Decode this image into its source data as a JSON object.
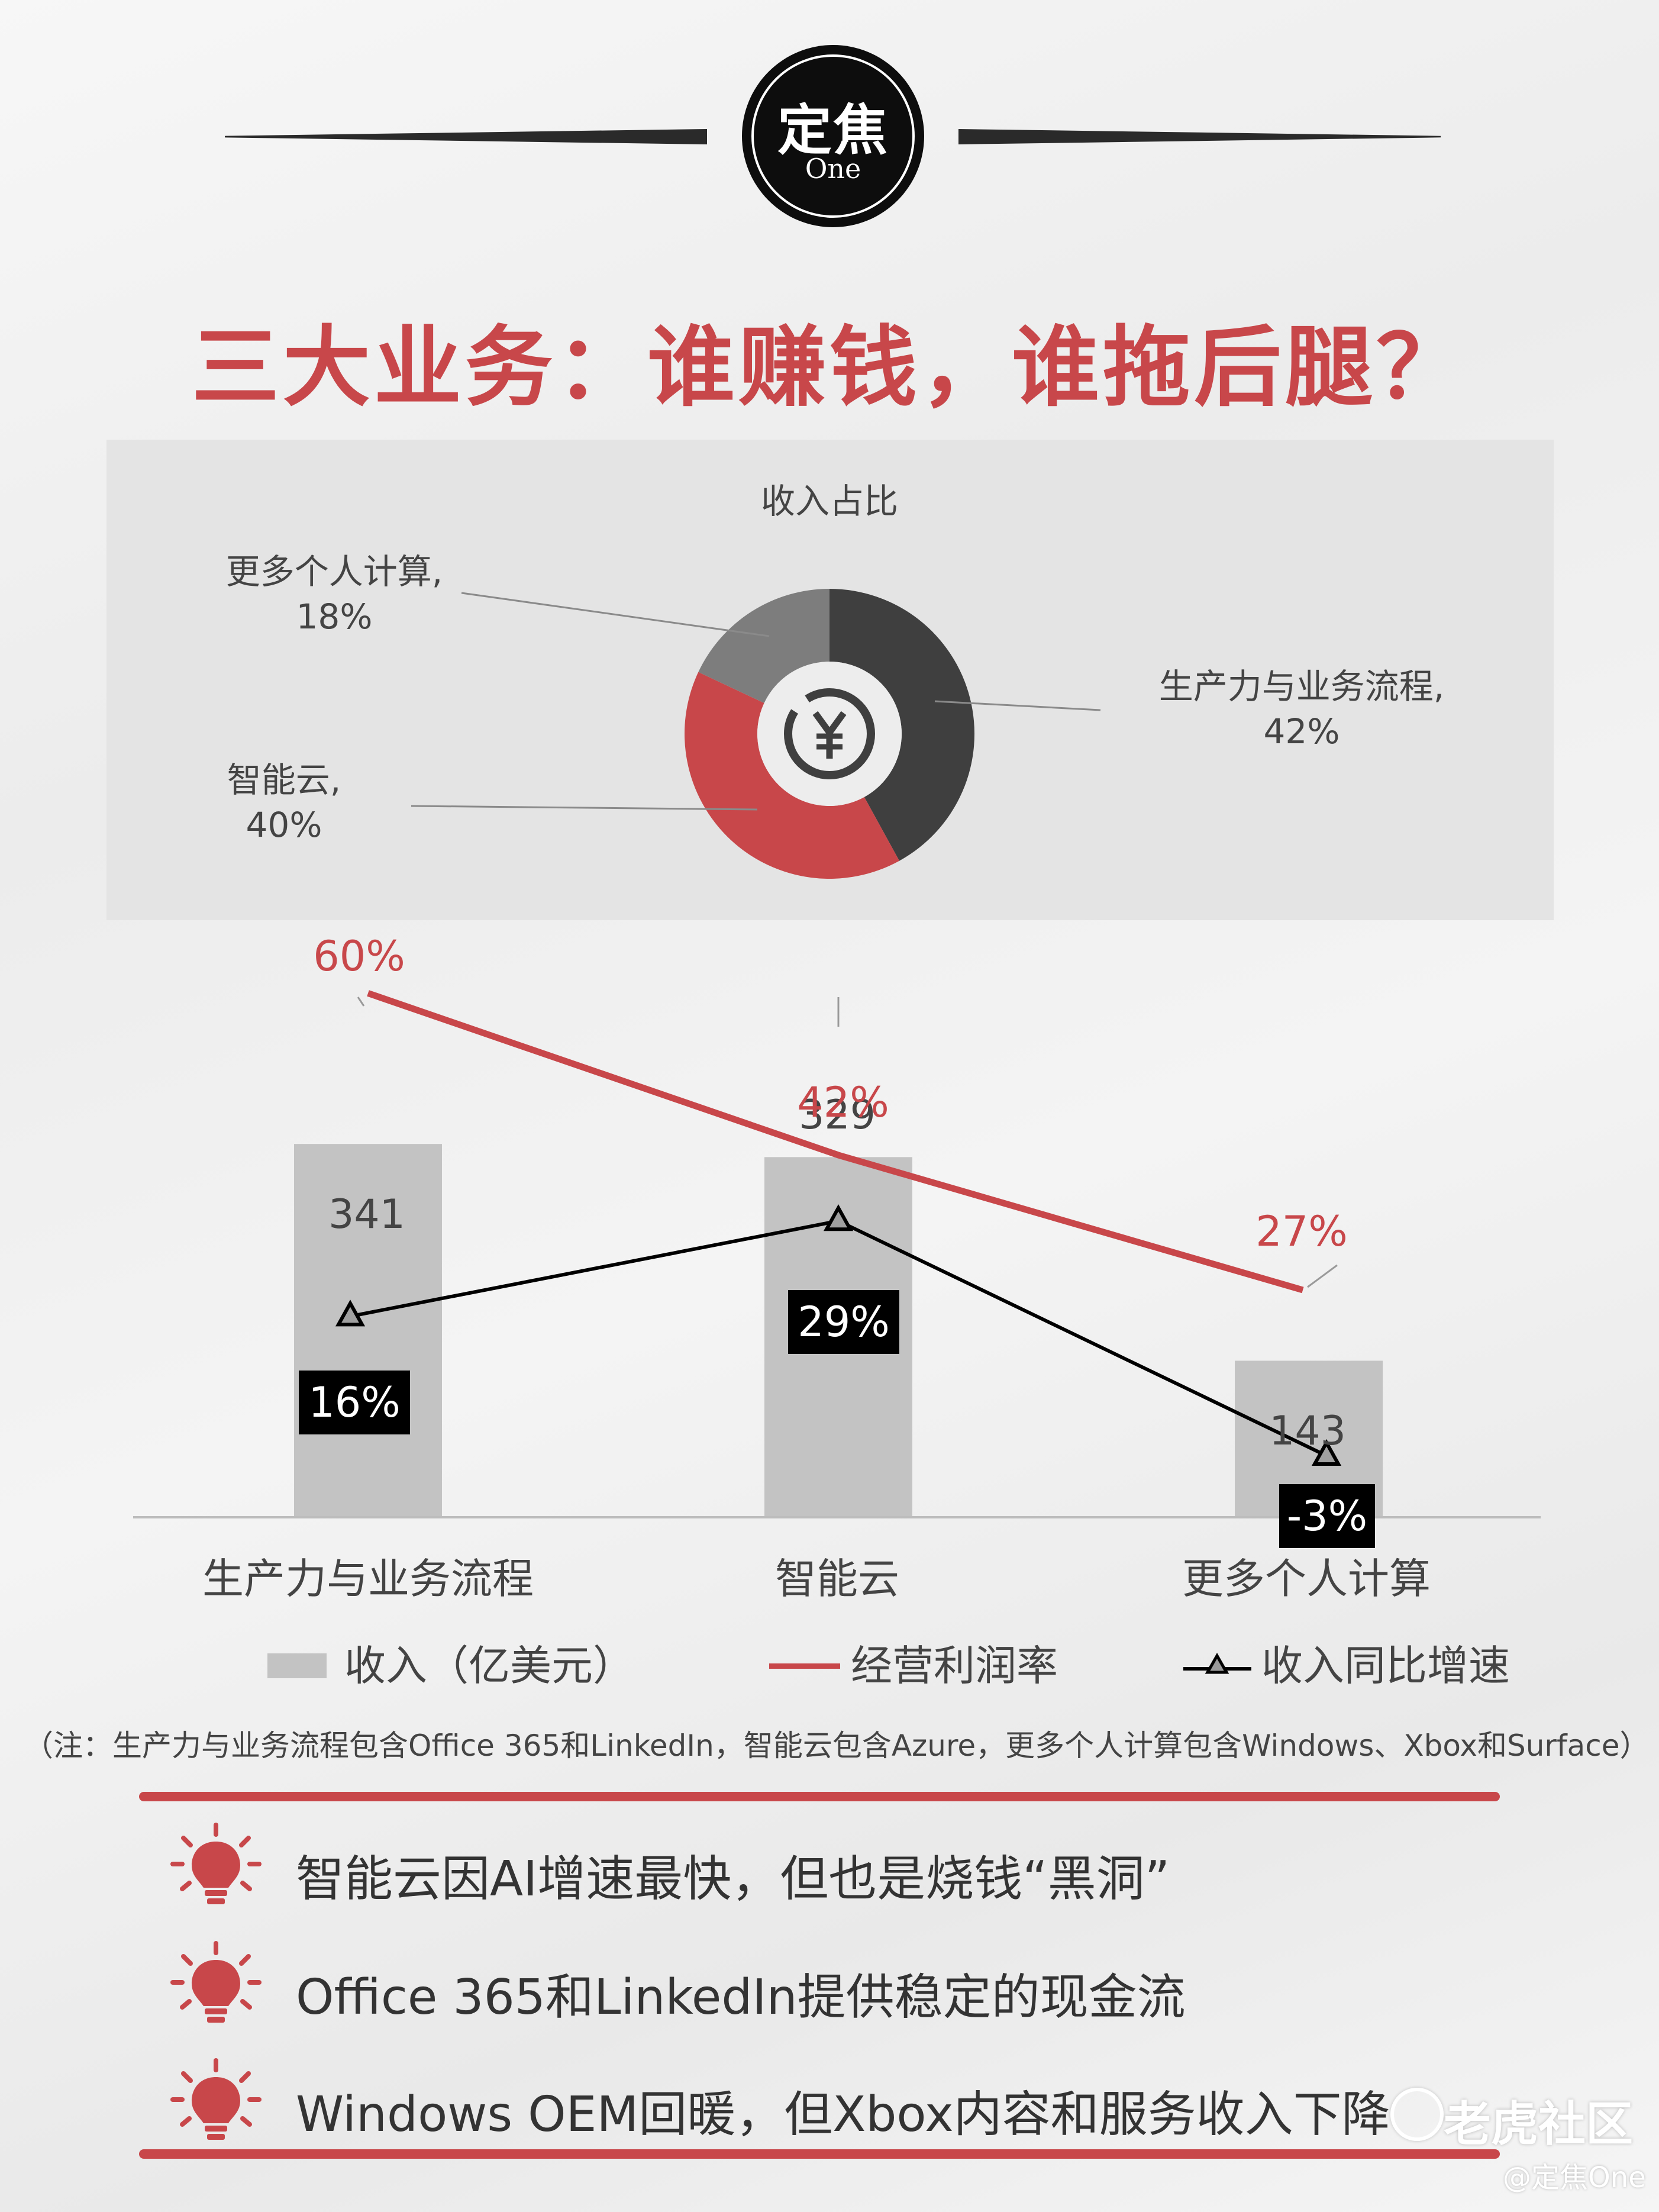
{
  "header": {
    "logo_main": "定焦",
    "logo_sub": "One",
    "headline": "三大业务：谁赚钱，谁拖后腿？"
  },
  "colors": {
    "accent_red": "#c8474a",
    "dark_gray": "#3f3f3f",
    "mid_gray": "#7d7d7d",
    "bar_gray": "#c3c3c3"
  },
  "chart_data": [
    {
      "type": "pie",
      "title": "收入占比",
      "slices": [
        {
          "label": "生产力与业务流程",
          "value": 42,
          "pct": "42%",
          "color": "#3f3f3f"
        },
        {
          "label": "智能云",
          "value": 40,
          "pct": "40%",
          "color": "#c8474a"
        },
        {
          "label": "更多个人计算",
          "value": 18,
          "pct": "18%",
          "color": "#7d7d7d"
        }
      ],
      "center_icon": "yen-coin-icon"
    },
    {
      "type": "bar",
      "categories": [
        "生产力与业务流程",
        "智能云",
        "更多个人计算"
      ],
      "series": [
        {
          "name": "收入（亿美元）",
          "kind": "bar",
          "values": [
            341,
            329,
            143
          ],
          "labels": [
            "341",
            "329",
            "143"
          ]
        },
        {
          "name": "经营利润率",
          "kind": "line",
          "values": [
            60,
            42,
            27
          ],
          "labels": [
            "60%",
            "42%",
            "27%"
          ]
        },
        {
          "name": "收入同比增速",
          "kind": "line-marker",
          "values": [
            16,
            29,
            -3
          ],
          "labels": [
            "16%",
            "29%",
            "-3%"
          ]
        }
      ],
      "legend_position": "bottom"
    }
  ],
  "note": "（注：生产力与业务流程包含Office 365和LinkedIn，智能云包含Azure，更多个人计算包含Windows、Xbox和Surface）",
  "bullets": [
    {
      "icon": "lightbulb-icon",
      "text": "智能云因AI增速最快，但也是烧钱“黑洞”"
    },
    {
      "icon": "lightbulb-icon",
      "text": "Office 365和LinkedIn提供稳定的现金流"
    },
    {
      "icon": "lightbulb-icon",
      "text": "Windows OEM回暖，但Xbox内容和服务收入下降"
    }
  ],
  "watermark": {
    "main": "老虎社区",
    "sub": "@定焦One"
  }
}
